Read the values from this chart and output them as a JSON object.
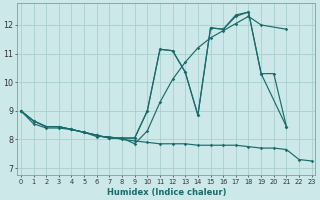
{
  "xlabel": "Humidex (Indice chaleur)",
  "bg_color": "#cce8e8",
  "grid_color": "#aacece",
  "line_color": "#1a6b6b",
  "xlim": [
    -0.3,
    23.3
  ],
  "ylim": [
    6.75,
    12.75
  ],
  "series": [
    {
      "x": [
        0,
        1,
        2,
        3,
        4,
        5,
        6,
        7,
        8,
        9,
        10,
        11,
        12,
        13,
        14,
        15,
        16,
        17,
        18,
        19,
        21
      ],
      "y": [
        9.0,
        8.65,
        8.45,
        8.45,
        8.35,
        8.25,
        8.15,
        8.05,
        8.05,
        8.05,
        9.0,
        11.15,
        11.1,
        10.35,
        8.85,
        11.9,
        11.85,
        12.3,
        12.45,
        10.3,
        8.45
      ]
    },
    {
      "x": [
        0,
        1,
        2,
        3,
        4,
        5,
        6,
        7,
        8,
        9,
        10,
        11,
        12,
        13,
        14,
        15,
        16,
        17,
        18,
        19,
        20,
        21
      ],
      "y": [
        9.0,
        8.65,
        8.45,
        8.45,
        8.35,
        8.25,
        8.15,
        8.05,
        8.05,
        8.05,
        9.0,
        11.15,
        11.1,
        10.35,
        8.85,
        11.9,
        11.85,
        12.35,
        12.45,
        10.3,
        10.3,
        8.45
      ]
    },
    {
      "x": [
        0,
        1,
        2,
        3,
        4,
        5,
        6,
        7,
        8,
        9,
        10,
        11,
        12,
        13,
        14,
        15,
        16,
        17,
        18,
        19,
        21
      ],
      "y": [
        9.0,
        8.65,
        8.45,
        8.45,
        8.35,
        8.25,
        8.15,
        8.05,
        8.05,
        7.85,
        8.3,
        9.3,
        10.1,
        10.7,
        11.2,
        11.55,
        11.8,
        12.05,
        12.3,
        12.0,
        11.85
      ]
    },
    {
      "x": [
        0,
        1,
        2,
        3,
        4,
        5,
        6,
        7,
        8,
        9,
        10,
        11,
        12,
        13,
        14,
        15,
        16,
        17,
        18,
        19,
        20,
        21,
        22,
        23
      ],
      "y": [
        9.0,
        8.55,
        8.4,
        8.4,
        8.35,
        8.25,
        8.1,
        8.1,
        8.0,
        7.95,
        7.9,
        7.85,
        7.85,
        7.85,
        7.8,
        7.8,
        7.8,
        7.8,
        7.75,
        7.7,
        7.7,
        7.65,
        7.3,
        7.25
      ]
    }
  ]
}
